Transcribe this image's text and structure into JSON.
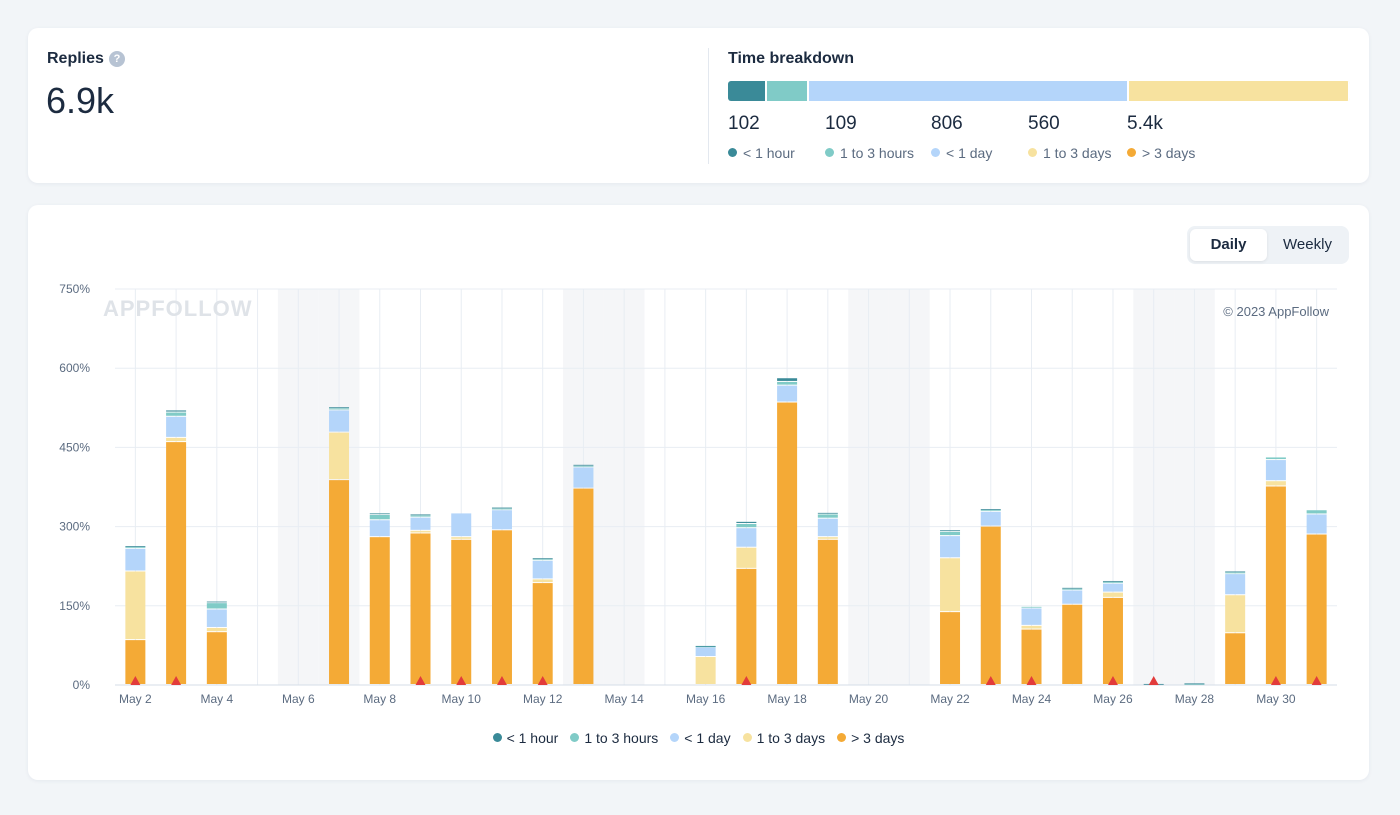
{
  "colors": {
    "lt1h": "#3a8a98",
    "h1to3": "#80cbc7",
    "lt1d": "#b4d5fa",
    "d1to3": "#f7e29f",
    "gt3d": "#f4aa36",
    "weekend": "#f5f6f8",
    "grid": "#e8edf3",
    "marker": "#e23b3b"
  },
  "summary": {
    "replies_title": "Replies",
    "help_icon": "question-circle-icon",
    "help_glyph": "?",
    "replies_value": "6.9k",
    "breakdown_title": "Time breakdown",
    "breakdown": [
      {
        "value": "102",
        "label": "< 1 hour",
        "color": "#3a8a98",
        "share": 0.062
      },
      {
        "value": "109",
        "label": "1 to 3 hours",
        "color": "#80cbc7",
        "share": 0.069
      },
      {
        "value": "806",
        "label": "< 1 day",
        "color": "#b4d5fa",
        "share": 0.514
      },
      {
        "value": "560",
        "label": "1 to 3 days",
        "color": "#f7e29f",
        "share": 0.355
      },
      {
        "value": "5.4k",
        "label": "> 3 days",
        "color": "#f4aa36",
        "share": 0
      }
    ]
  },
  "toggle": {
    "daily": "Daily",
    "weekly": "Weekly",
    "selected": "Daily"
  },
  "chart_data": {
    "type": "bar",
    "stacked": true,
    "watermark": "APPFOLLOW",
    "copyright": "© 2023 AppFollow",
    "ylim": [
      0,
      750
    ],
    "y_ticks": [
      "0%",
      "150%",
      "300%",
      "450%",
      "600%",
      "750%"
    ],
    "y_tick_values": [
      0,
      150,
      300,
      450,
      600,
      750
    ],
    "days": [
      "May 2",
      "May 3",
      "May 4",
      "May 5",
      "May 6",
      "May 7",
      "May 8",
      "May 9",
      "May 10",
      "May 11",
      "May 12",
      "May 13",
      "May 14",
      "May 15",
      "May 16",
      "May 17",
      "May 18",
      "May 19",
      "May 20",
      "May 21",
      "May 22",
      "May 23",
      "May 24",
      "May 25",
      "May 26",
      "May 27",
      "May 28",
      "May 29",
      "May 30",
      "May 31"
    ],
    "x_tick_labels": [
      "May 2",
      "May 4",
      "May 6",
      "May 8",
      "May 10",
      "May 12",
      "May 14",
      "May 16",
      "May 18",
      "May 20",
      "May 22",
      "May 24",
      "May 26",
      "May 28",
      "May 30"
    ],
    "weekend_days": [
      "May 6",
      "May 7",
      "May 13",
      "May 14",
      "May 20",
      "May 21",
      "May 27",
      "May 28"
    ],
    "marker_days": [
      "May 2",
      "May 3",
      "May 9",
      "May 10",
      "May 11",
      "May 12",
      "May 17",
      "May 23",
      "May 24",
      "May 26",
      "May 27",
      "May 30",
      "May 31"
    ],
    "series": [
      {
        "name": "> 3 days",
        "color": "#f4aa36",
        "values": [
          85,
          460,
          100,
          0,
          0,
          388,
          280,
          287,
          275,
          293,
          193,
          372,
          0,
          0,
          0,
          220,
          535,
          275,
          0,
          0,
          138,
          300,
          105,
          152,
          165,
          0,
          0,
          98,
          376,
          285
        ]
      },
      {
        "name": "1 to 3 days",
        "color": "#f7e29f",
        "values": [
          130,
          8,
          8,
          0,
          0,
          90,
          0,
          5,
          5,
          0,
          7,
          0,
          0,
          0,
          53,
          40,
          0,
          5,
          0,
          0,
          102,
          0,
          7,
          0,
          10,
          0,
          0,
          72,
          10,
          0
        ]
      },
      {
        "name": "< 1 day",
        "color": "#b4d5fa",
        "values": [
          43,
          40,
          35,
          0,
          0,
          42,
          32,
          25,
          45,
          38,
          35,
          40,
          0,
          0,
          18,
          37,
          32,
          35,
          0,
          0,
          42,
          28,
          33,
          27,
          17,
          0,
          0,
          40,
          40,
          38
        ]
      },
      {
        "name": "1 to 3 hours",
        "color": "#80cbc7",
        "values": [
          3,
          8,
          12,
          0,
          0,
          4,
          10,
          4,
          0,
          3,
          3,
          3,
          0,
          0,
          2,
          8,
          7,
          8,
          0,
          0,
          8,
          3,
          3,
          3,
          3,
          0,
          2,
          3,
          5,
          8
        ]
      },
      {
        "name": "< 1 hour",
        "color": "#3a8a98",
        "values": [
          2,
          4,
          3,
          0,
          0,
          2,
          3,
          2,
          0,
          2,
          2,
          2,
          0,
          0,
          1,
          4,
          7,
          3,
          0,
          0,
          3,
          2,
          0,
          2,
          2,
          2,
          1,
          2,
          0,
          0
        ]
      }
    ],
    "legend": [
      "< 1 hour",
      "1 to 3 hours",
      "< 1 day",
      "1 to 3 days",
      "> 3 days"
    ],
    "legend_position": "bottom-center"
  }
}
